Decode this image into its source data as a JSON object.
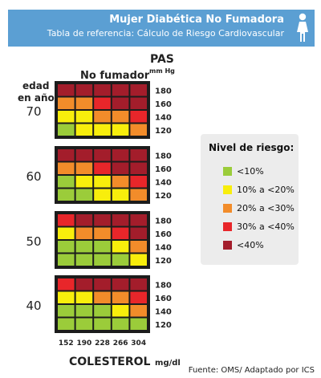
{
  "header": {
    "title": "Mujer Diabética No Fumadora",
    "subtitle": "Tabla de referencia: Cálculo de Riesgo Cardiovascular"
  },
  "labels": {
    "smoker_status": "No fumador",
    "pas": "PAS",
    "pas_unit": "mm Hg",
    "age_line1": "edad",
    "age_line2": "en años",
    "cholesterol": "COLESTEROL",
    "cholesterol_unit": "mg/dl"
  },
  "legend": {
    "title": "Nivel de riesgo:",
    "items": [
      {
        "label": "<10%",
        "color": "#9bcc3a"
      },
      {
        "label": "10% a <20%",
        "color": "#f8ee0c"
      },
      {
        "label": "20% a <30%",
        "color": "#f28c2a"
      },
      {
        "label": "30% a <40%",
        "color": "#e8262a"
      },
      {
        "label": "<40%",
        "color": "#a31d2b"
      }
    ]
  },
  "footer": "Fuente:  OMS/ Adaptado por ICS",
  "chart_data": {
    "type": "heatmap",
    "x_label": "COLESTEROL mg/dl",
    "y_label": "PAS mm Hg",
    "x_categories": [
      "152",
      "190",
      "228",
      "266",
      "304"
    ],
    "y_categories": [
      "180",
      "160",
      "140",
      "120"
    ],
    "level_colors": [
      "#9bcc3a",
      "#f8ee0c",
      "#f28c2a",
      "#e8262a",
      "#a31d2b"
    ],
    "groups": [
      {
        "age": "70",
        "levels": [
          [
            4,
            4,
            4,
            4,
            4
          ],
          [
            2,
            2,
            3,
            4,
            4
          ],
          [
            1,
            1,
            2,
            2,
            3
          ],
          [
            0,
            1,
            1,
            1,
            2
          ]
        ]
      },
      {
        "age": "60",
        "levels": [
          [
            4,
            4,
            4,
            4,
            4
          ],
          [
            2,
            2,
            3,
            4,
            4
          ],
          [
            0,
            1,
            1,
            2,
            3
          ],
          [
            0,
            0,
            1,
            1,
            2
          ]
        ]
      },
      {
        "age": "50",
        "levels": [
          [
            3,
            4,
            4,
            4,
            4
          ],
          [
            1,
            2,
            2,
            3,
            4
          ],
          [
            0,
            0,
            0,
            1,
            2
          ],
          [
            0,
            0,
            0,
            0,
            1
          ]
        ]
      },
      {
        "age": "40",
        "levels": [
          [
            3,
            4,
            4,
            4,
            4
          ],
          [
            1,
            1,
            2,
            2,
            3
          ],
          [
            0,
            0,
            0,
            1,
            2
          ],
          [
            0,
            0,
            0,
            0,
            0
          ]
        ]
      }
    ]
  }
}
